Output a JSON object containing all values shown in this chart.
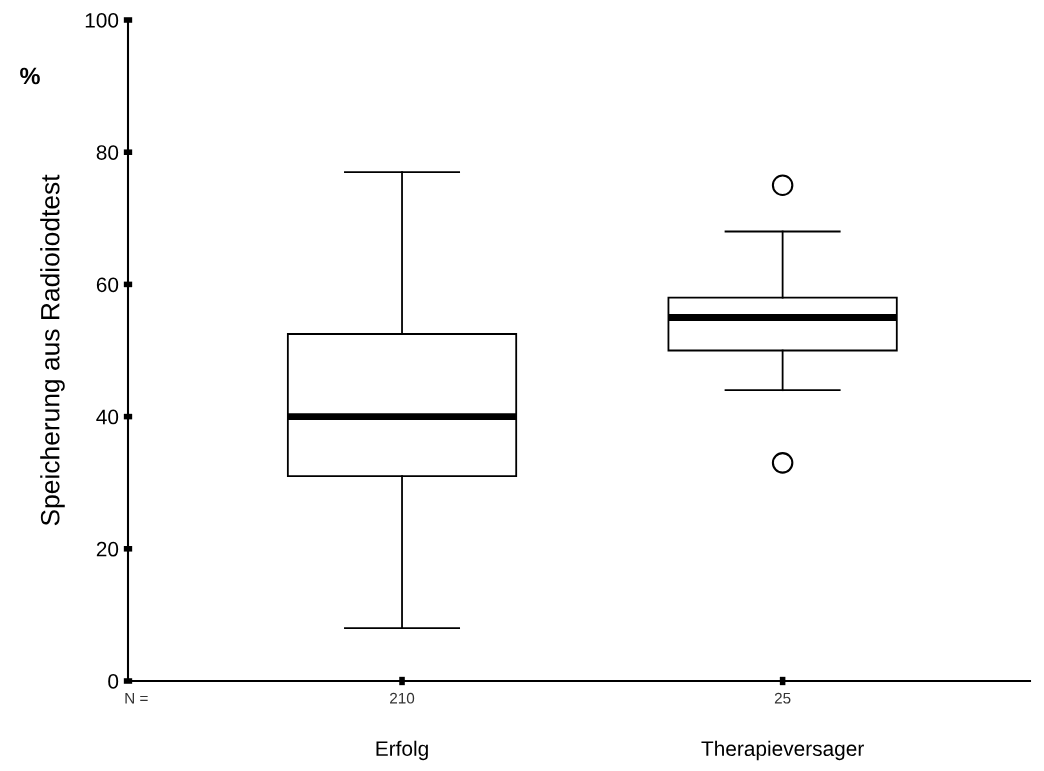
{
  "chart_data": {
    "type": "box",
    "categories": [
      "Erfolg",
      "Therapieversager"
    ],
    "boxes": [
      {
        "low": 8,
        "q1": 31,
        "median": 40,
        "q3": 52.5,
        "high": 77
      },
      {
        "low": 44,
        "q1": 50,
        "median": 55,
        "q3": 58,
        "high": 68,
        "outliers": [
          75,
          33
        ]
      }
    ],
    "ylabel": "Speicherung aus Radioiodtest",
    "ylim": [
      0,
      100
    ],
    "yticks": [
      0,
      20,
      40,
      60,
      80,
      100
    ],
    "annotations": [
      "%",
      "N =",
      "210",
      "25"
    ],
    "grid": false,
    "legend": false
  }
}
